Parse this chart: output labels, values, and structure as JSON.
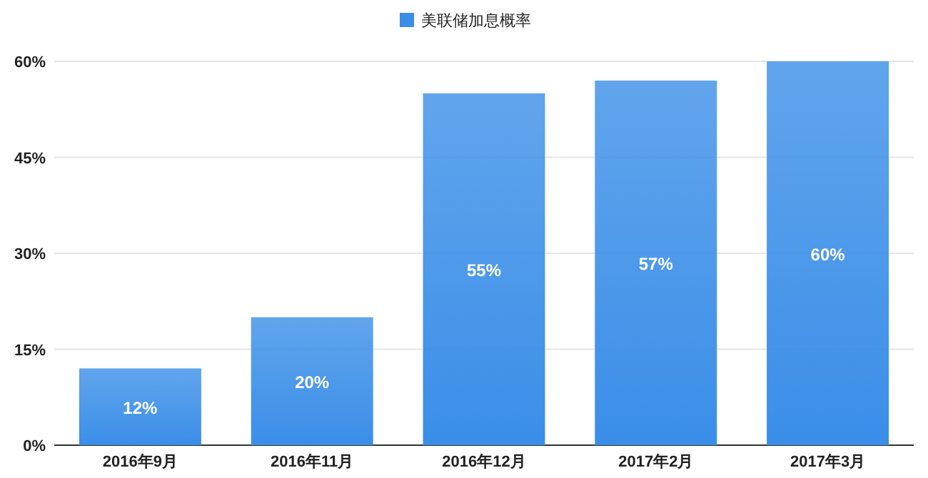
{
  "chart_data": {
    "type": "bar",
    "categories": [
      "2016年9月",
      "2016年11月",
      "2016年12月",
      "2017年2月",
      "2017年3月"
    ],
    "series": [
      {
        "name": "美联储加息概率",
        "color": "#3a8ee8",
        "values": [
          12,
          20,
          55,
          57,
          60
        ]
      }
    ],
    "value_labels": [
      "12%",
      "20%",
      "55%",
      "57%",
      "60%"
    ],
    "ylim": [
      0,
      60
    ],
    "yticks": [
      {
        "value": 0,
        "label": "0%"
      },
      {
        "value": 15,
        "label": "15%"
      },
      {
        "value": 30,
        "label": "30%"
      },
      {
        "value": 45,
        "label": "45%"
      },
      {
        "value": 60,
        "label": "60%"
      }
    ],
    "grid": "y",
    "legend": "top"
  }
}
